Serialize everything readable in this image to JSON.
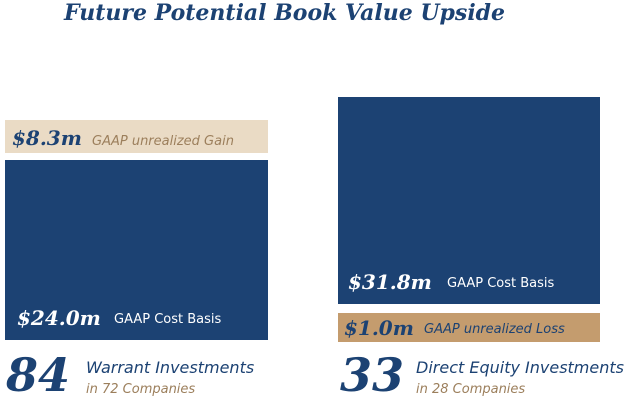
{
  "title": "Future Potential Book Value Upside",
  "colors": {
    "navy": "#1c4273",
    "tan": "#eadbc5",
    "brown": "#c49c6e",
    "title": "#1c4273"
  },
  "chart_data": {
    "type": "bar",
    "stacked": true,
    "groups": [
      {
        "count": "84",
        "line1": "Warrant Investments",
        "line2": "in 72 Companies",
        "segments": [
          {
            "value_label": "$24.0m",
            "desc": "GAAP Cost Basis",
            "value": 24.0,
            "color": "#1c4273"
          },
          {
            "value_label": "$8.3m",
            "desc": "GAAP unrealized Gain",
            "value": 8.3,
            "color": "#eadbc5"
          }
        ]
      },
      {
        "count": "33",
        "line1": "Direct Equity Investments",
        "line2": "in 28 Companies",
        "segments": [
          {
            "value_label": "$31.8m",
            "desc": "GAAP Cost Basis",
            "value": 31.8,
            "color": "#1c4273"
          },
          {
            "value_label": "$1.0m",
            "desc": "GAAP unrealized Loss",
            "value": 1.0,
            "color": "#c49c6e"
          }
        ]
      }
    ]
  }
}
